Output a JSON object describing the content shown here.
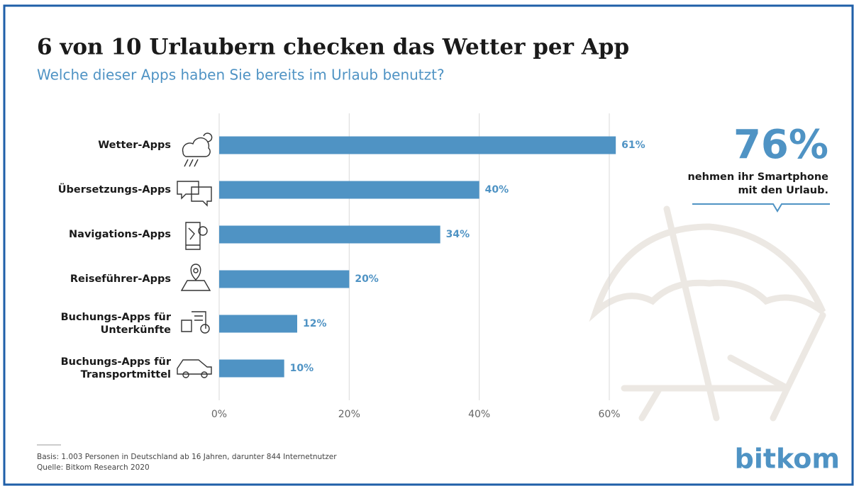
{
  "chart_data": {
    "type": "bar",
    "orientation": "horizontal",
    "title": "6 von 10 Urlaubern checken das Wetter per App",
    "subtitle": "Welche dieser Apps haben Sie bereits im Urlaub benutzt?",
    "categories": [
      [
        "Wetter-Apps"
      ],
      [
        "Übersetzungs-Apps"
      ],
      [
        "Navigations-Apps"
      ],
      [
        "Reiseführer-Apps"
      ],
      [
        "Buchungs-Apps für",
        "Unterkünfte"
      ],
      [
        "Buchungs-Apps für",
        "Transportmittel"
      ]
    ],
    "values": [
      61,
      40,
      34,
      20,
      12,
      10
    ],
    "value_labels": [
      "61%",
      "40%",
      "34%",
      "20%",
      "12%",
      "10%"
    ],
    "color": "#4f93c4",
    "xlim": [
      0,
      60
    ],
    "xticks": [
      {
        "value": 0,
        "label": "0%"
      },
      {
        "value": 20,
        "label": "20%"
      },
      {
        "value": 40,
        "label": "40%"
      },
      {
        "value": 60,
        "label": "60%"
      }
    ],
    "grid": true,
    "annotation": {
      "value": 76,
      "label": "76%",
      "text": [
        "nehmen ihr Smartphone",
        "mit den Urlaub."
      ]
    },
    "footnotes": [
      "Basis: 1.003 Personen in Deutschland ab 16 Jahren, darunter 844 Internetnutzer",
      "Quelle: Bitkom Research 2020"
    ],
    "logo": "bitkom"
  }
}
